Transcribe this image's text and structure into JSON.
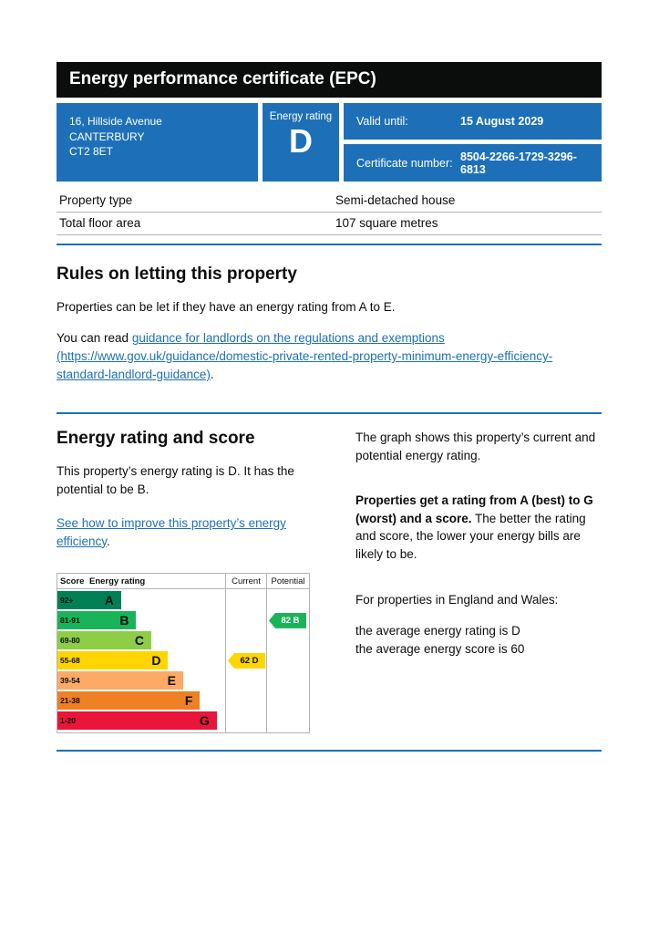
{
  "header": {
    "title": "Energy performance certificate (EPC)"
  },
  "summary": {
    "address_lines": [
      "16, Hillside Avenue",
      "CANTERBURY",
      "CT2 8ET"
    ],
    "energy_rating_label": "Energy rating",
    "energy_rating_value": "D",
    "valid_until_label": "Valid until:",
    "valid_until_value": "15 August 2029",
    "certificate_number_label": "Certificate number:",
    "certificate_number_value": "8504-2266-1729-3296-6813"
  },
  "property_details": {
    "rows": [
      {
        "label": "Property type",
        "value": "Semi-detached house"
      },
      {
        "label": "Total floor area",
        "value": "107 square metres"
      }
    ]
  },
  "rules_section": {
    "heading": "Rules on letting this property",
    "intro": "Properties can be let if they have an energy rating from A to E.",
    "read_prefix": "You can read ",
    "guidance_link": "guidance for landlords on the regulations and exemptions (https://www.gov.uk/guidance/domestic-private-rented-property-minimum-energy-efficiency-standard-landlord-guidance)",
    "read_suffix": "."
  },
  "rating_section": {
    "heading": "Energy rating and score",
    "summary_text": "This property’s energy rating is D. It has the potential to be B.",
    "improve_link": "See how to improve this property’s energy efficiency",
    "improve_suffix": ".",
    "graph_intro": "The graph shows this property’s current and potential energy rating.",
    "explain_bold": "Properties get a rating from A (best) to G (worst) and a score.",
    "explain_rest": " The better the rating and score, the lower your energy bills are likely to be.",
    "region_line": "For properties in England and Wales:",
    "average_rating_line": "the average energy rating is D",
    "average_score_line": "the average energy score is 60"
  },
  "chart_data": {
    "type": "epc-rating-bands",
    "headers": {
      "score": "Score",
      "rating": "Energy rating",
      "current": "Current",
      "potential": "Potential"
    },
    "bands": [
      {
        "score": "92+",
        "letter": "A",
        "color": "#008054",
        "width_pct": 38
      },
      {
        "score": "81-91",
        "letter": "B",
        "color": "#19b459",
        "width_pct": 47
      },
      {
        "score": "69-80",
        "letter": "C",
        "color": "#8dce46",
        "width_pct": 56
      },
      {
        "score": "55-68",
        "letter": "D",
        "color": "#ffd500",
        "width_pct": 66
      },
      {
        "score": "39-54",
        "letter": "E",
        "color": "#fcaa65",
        "width_pct": 75
      },
      {
        "score": "21-38",
        "letter": "F",
        "color": "#ef8023",
        "width_pct": 85
      },
      {
        "score": "1-20",
        "letter": "G",
        "color": "#e9153b",
        "width_pct": 95
      }
    ],
    "current": {
      "score": 62,
      "letter": "D",
      "band_index": 3,
      "color": "#ffd500",
      "text_color": "#0b0c0c"
    },
    "potential": {
      "score": 82,
      "letter": "B",
      "band_index": 1,
      "color": "#19b459",
      "text_color": "#ffffff"
    }
  },
  "theme": {
    "brand_blue": "#1d70b8",
    "banner_black": "#0b0c0c",
    "border_gray": "#b1b4b6",
    "link_blue": "#1d70b8"
  }
}
